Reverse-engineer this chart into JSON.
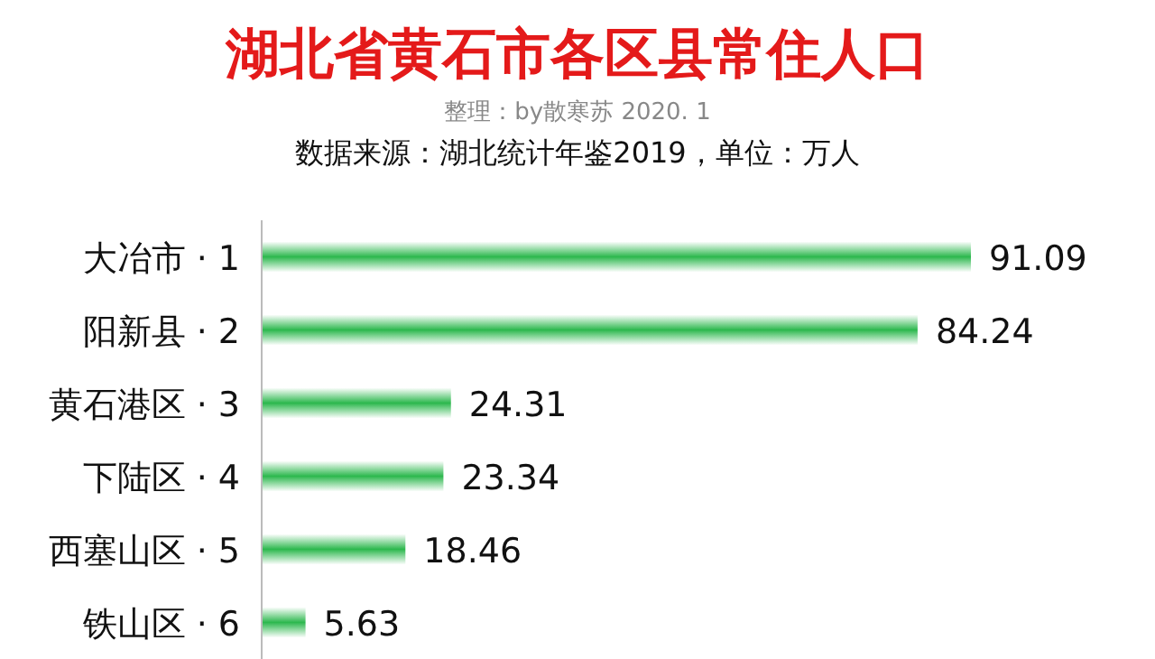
{
  "chart_data": {
    "type": "bar",
    "orientation": "horizontal",
    "title": "湖北省黄石市各区县常住人口",
    "subtitle": "整理：by散寒苏 2020. 1",
    "annotations": [
      "数据来源：湖北统计年鉴2019，单位：万人"
    ],
    "categories": [
      "大冶市 · 1",
      "阳新县 · 2",
      "黄石港区 · 3",
      "下陆区 · 4",
      "西塞山区 · 5",
      "铁山区 · 6"
    ],
    "values": [
      91.09,
      84.24,
      24.31,
      23.34,
      18.46,
      5.63
    ],
    "color": "#2db84e",
    "data_labels": true
  }
}
